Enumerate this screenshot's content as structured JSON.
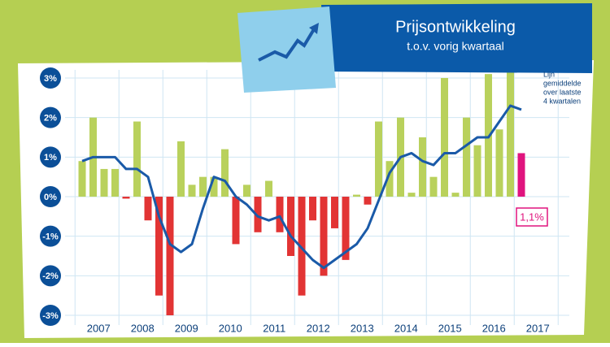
{
  "chart_data": {
    "type": "bar",
    "title": "Prijsontwikkeling",
    "subtitle": "t.o.v. vorig kwartaal",
    "annotation": [
      "Lijn",
      "gemiddelde",
      "over laatste",
      "4 kwartalen"
    ],
    "categories": [
      null,
      null,
      null,
      null,
      null,
      null,
      null,
      null,
      null,
      null,
      null,
      null,
      null,
      null,
      null,
      null,
      null,
      null,
      null,
      null,
      null,
      null,
      null,
      null,
      null,
      null,
      null,
      null,
      null,
      null,
      null,
      null,
      null,
      null,
      null,
      null,
      null,
      null,
      null,
      null,
      null
    ],
    "year_labels": [
      "2007",
      "2008",
      "2009",
      "2010",
      "2011",
      "2012",
      "2013",
      "2014",
      "2015",
      "2016",
      "2017"
    ],
    "series": [
      {
        "name": null,
        "type": "bar",
        "values": [
          0.9,
          2.0,
          0.7,
          0.7,
          -0.05,
          1.9,
          -0.6,
          -2.5,
          -3.0,
          1.4,
          0.3,
          0.5,
          0.5,
          1.2,
          -1.2,
          0.3,
          -0.9,
          0.4,
          -0.9,
          -1.5,
          -2.5,
          -0.6,
          -2.0,
          -0.8,
          -1.6,
          0.05,
          -0.2,
          1.9,
          0.9,
          2.0,
          0.1,
          1.5,
          0.5,
          3.0,
          0.1,
          2.0,
          1.3,
          3.1,
          1.7,
          3.3,
          1.1
        ],
        "colors": [
          "#b9d15c",
          "#b9d15c",
          "#b9d15c",
          "#b9d15c",
          "#e23434",
          "#b9d15c",
          "#e23434",
          "#e23434",
          "#e23434",
          "#b9d15c",
          "#b9d15c",
          "#b9d15c",
          "#b9d15c",
          "#b9d15c",
          "#e23434",
          "#b9d15c",
          "#e23434",
          "#b9d15c",
          "#e23434",
          "#e23434",
          "#e23434",
          "#e23434",
          "#e23434",
          "#e23434",
          "#e23434",
          "#b9d15c",
          "#e23434",
          "#b9d15c",
          "#b9d15c",
          "#b9d15c",
          "#b9d15c",
          "#b9d15c",
          "#b9d15c",
          "#b9d15c",
          "#b9d15c",
          "#b9d15c",
          "#b9d15c",
          "#b9d15c",
          "#b9d15c",
          "#b9d15c",
          "#e0147e"
        ],
        "value_labels": [
          null,
          null,
          null,
          null,
          null,
          null,
          null,
          null,
          null,
          null,
          null,
          null,
          null,
          null,
          null,
          null,
          null,
          null,
          null,
          null,
          null,
          null,
          null,
          null,
          null,
          null,
          null,
          null,
          null,
          null,
          null,
          null,
          null,
          null,
          null,
          null,
          null,
          null,
          null,
          null,
          "1,1%"
        ]
      },
      {
        "name": null,
        "type": "line",
        "color": "#1a5aa8",
        "values": [
          0.9,
          1.0,
          1.0,
          1.0,
          0.7,
          0.7,
          0.5,
          -0.5,
          -1.2,
          -1.4,
          -1.2,
          -0.3,
          0.5,
          0.4,
          0.0,
          -0.2,
          -0.5,
          -0.6,
          -0.5,
          -1.0,
          -1.3,
          -1.6,
          -1.8,
          -1.6,
          -1.4,
          -1.2,
          -0.8,
          -0.1,
          0.6,
          1.0,
          1.1,
          0.9,
          0.8,
          1.1,
          1.1,
          1.3,
          1.5,
          1.5,
          1.9,
          2.3,
          2.2
        ]
      }
    ],
    "ylim": [
      -3,
      3
    ],
    "yticks": [
      {
        "value": 3,
        "label": "3%"
      },
      {
        "value": 2,
        "label": "2%"
      },
      {
        "value": 1,
        "label": "1%"
      },
      {
        "value": 0,
        "label": "0%"
      },
      {
        "value": -1,
        "label": "-1%"
      },
      {
        "value": -2,
        "label": "-2%"
      },
      {
        "value": -3,
        "label": "-3%"
      }
    ],
    "grid": true
  }
}
